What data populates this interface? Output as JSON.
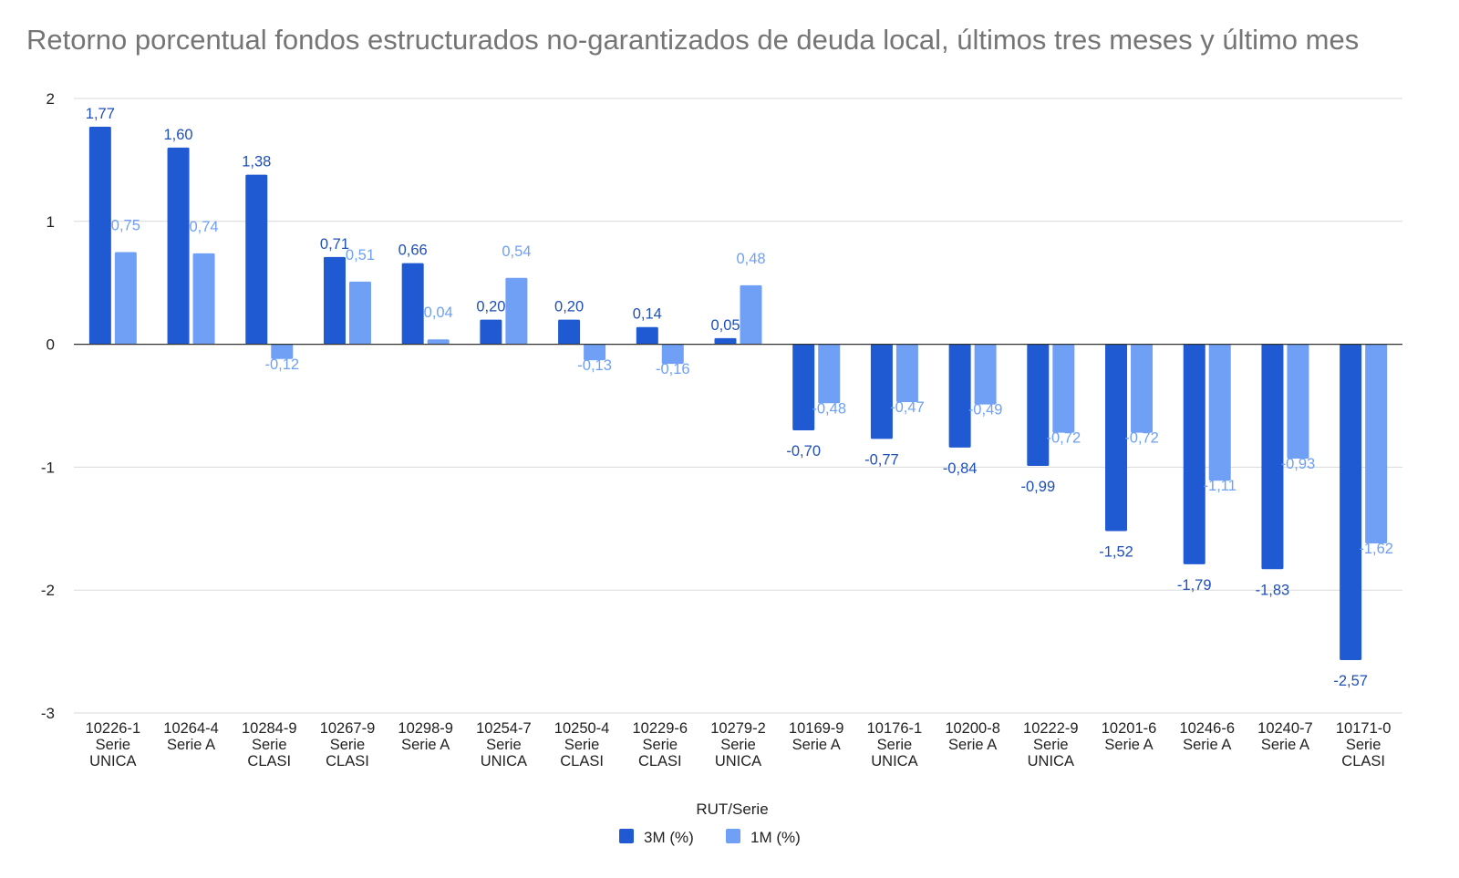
{
  "chart_data": {
    "type": "bar",
    "title": "Retorno porcentual fondos estructurados no-garantizados de deuda local, últimos tres meses y último mes",
    "xlabel": "RUT/Serie",
    "ylabel": "",
    "ylim": [
      -3,
      2
    ],
    "yticks": [
      "2",
      "1",
      "0",
      "-1",
      "-2",
      "-3"
    ],
    "grid": true,
    "legend_position": "bottom",
    "categories": [
      [
        "10226-1",
        "Serie",
        "UNICA"
      ],
      [
        "10264-4",
        "Serie A"
      ],
      [
        "10284-9",
        "Serie",
        "CLASI"
      ],
      [
        "10267-9",
        "Serie",
        "CLASI"
      ],
      [
        "10298-9",
        "Serie A"
      ],
      [
        "10254-7",
        "Serie",
        "UNICA"
      ],
      [
        "10250-4",
        "Serie",
        "CLASI"
      ],
      [
        "10229-6",
        "Serie",
        "CLASI"
      ],
      [
        "10279-2",
        "Serie",
        "UNICA"
      ],
      [
        "10169-9",
        "Serie A"
      ],
      [
        "10176-1",
        "Serie",
        "UNICA"
      ],
      [
        "10200-8",
        "Serie A"
      ],
      [
        "10222-9",
        "Serie",
        "UNICA"
      ],
      [
        "10201-6",
        "Serie A"
      ],
      [
        "10246-6",
        "Serie A"
      ],
      [
        "10240-7",
        "Serie A"
      ],
      [
        "10171-0",
        "Serie",
        "CLASI"
      ]
    ],
    "series": [
      {
        "name": "3M (%)",
        "color": "#1f5ad2",
        "label_color": "#1f4fb8",
        "values": [
          1.77,
          1.6,
          1.38,
          0.71,
          0.66,
          0.2,
          0.2,
          0.14,
          0.05,
          -0.7,
          -0.77,
          -0.84,
          -0.99,
          -1.52,
          -1.79,
          -1.83,
          -2.57
        ],
        "labels": [
          "1,77",
          "1,60",
          "1,38",
          "0,71",
          "0,66",
          "0,20",
          "0,20",
          "0,14",
          "0,05",
          "-0,70",
          "-0,77",
          "-0,84",
          "-0,99",
          "-1,52",
          "-1,79",
          "-1,83",
          "-2,57"
        ]
      },
      {
        "name": "1M (%)",
        "color": "#6fa0f5",
        "label_color": "#6fa0f5",
        "values": [
          0.75,
          0.74,
          -0.12,
          0.51,
          0.04,
          0.54,
          -0.13,
          -0.16,
          0.48,
          -0.48,
          -0.47,
          -0.49,
          -0.72,
          -0.72,
          -1.11,
          -0.93,
          -1.62
        ],
        "labels": [
          "0,75",
          "0,74",
          "-0,12",
          "0,51",
          "0,04",
          "0,54",
          "-0,13",
          "-0,16",
          "0,48",
          "-0,48",
          "-0,47",
          "-0,49",
          "-0,72",
          "-0,72",
          "-1,11",
          "-0,93",
          "-1,62"
        ]
      }
    ]
  }
}
